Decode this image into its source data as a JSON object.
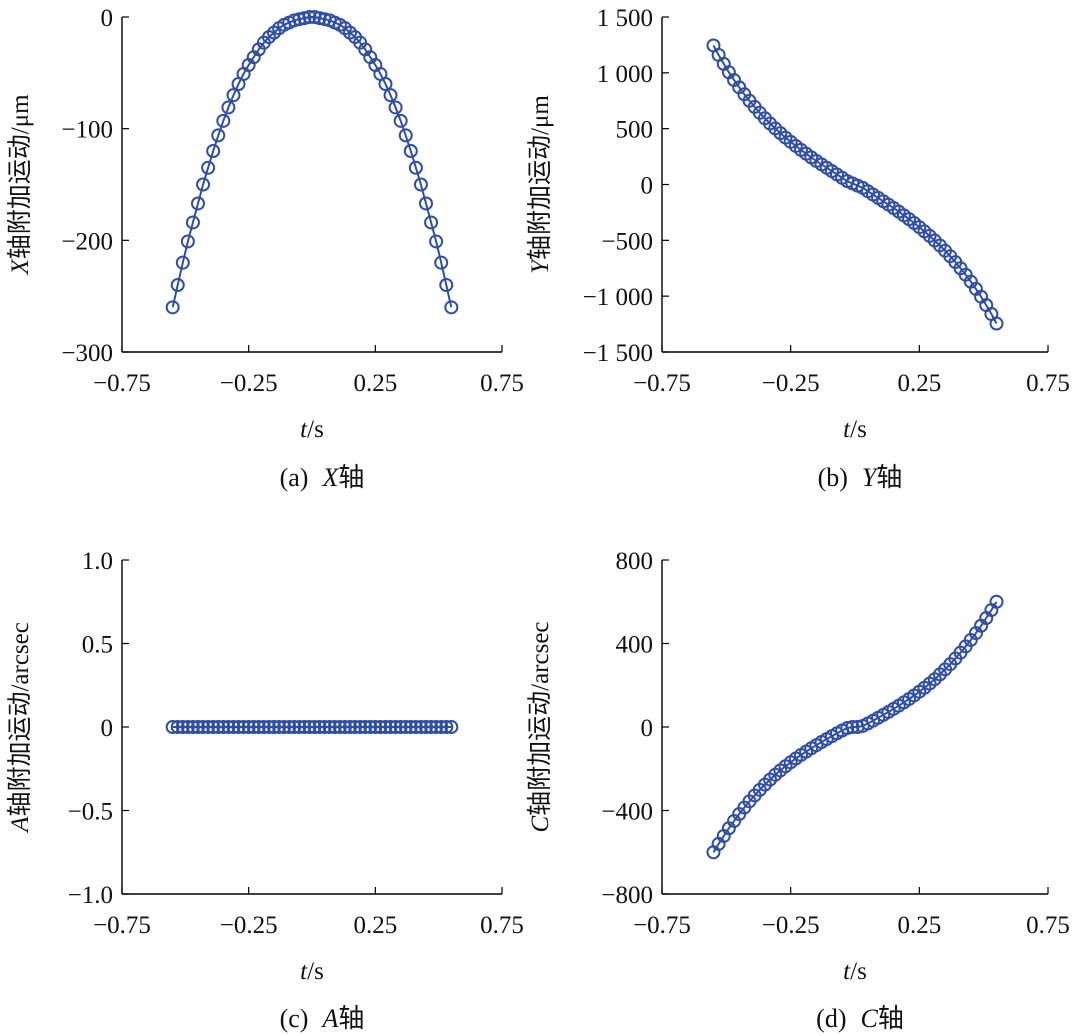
{
  "chart_data": [
    {
      "type": "line",
      "panel": "a",
      "caption": {
        "prefix": "(a)",
        "axis": "X",
        "suffix": "轴"
      },
      "title": "",
      "xlabel": {
        "var": "t",
        "unit": "/s"
      },
      "ylabel": {
        "axis": "X",
        "rest": "轴附加运动/μm"
      },
      "xlim": [
        -0.75,
        0.75
      ],
      "ylim": [
        -300,
        0
      ],
      "xticks": [
        "−0.75",
        "−0.25",
        "0.25",
        "0.75"
      ],
      "xtick_values": [
        -0.75,
        -0.25,
        0.25,
        0.75
      ],
      "yticks": [
        "0",
        "−100",
        "−200",
        "−300"
      ],
      "ytick_values": [
        0,
        -100,
        -200,
        -300
      ],
      "x": [
        -0.55,
        -0.53,
        -0.51,
        -0.49,
        -0.47,
        -0.45,
        -0.43,
        -0.41,
        -0.39,
        -0.37,
        -0.35,
        -0.33,
        -0.31,
        -0.29,
        -0.27,
        -0.25,
        -0.23,
        -0.21,
        -0.19,
        -0.17,
        -0.15,
        -0.13,
        -0.11,
        -0.09,
        -0.07,
        -0.05,
        -0.03,
        -0.01,
        0.01,
        0.03,
        0.05,
        0.07,
        0.09,
        0.11,
        0.13,
        0.15,
        0.17,
        0.19,
        0.21,
        0.23,
        0.25,
        0.27,
        0.29,
        0.31,
        0.33,
        0.35,
        0.37,
        0.39,
        0.41,
        0.43,
        0.45,
        0.47,
        0.49,
        0.51,
        0.53,
        0.55
      ],
      "y": [
        -260,
        -240,
        -220,
        -201,
        -184,
        -167,
        -150,
        -135,
        -120,
        -106,
        -93,
        -81,
        -70,
        -60,
        -51,
        -43,
        -36,
        -29,
        -23,
        -18,
        -14,
        -10,
        -7,
        -5,
        -3,
        -2,
        -1,
        0,
        0,
        -1,
        -2,
        -3,
        -5,
        -7,
        -10,
        -14,
        -18,
        -23,
        -29,
        -36,
        -43,
        -51,
        -60,
        -70,
        -81,
        -93,
        -106,
        -120,
        -135,
        -150,
        -167,
        -184,
        -201,
        -220,
        -240,
        -260
      ]
    },
    {
      "type": "line",
      "panel": "b",
      "caption": {
        "prefix": "(b)",
        "axis": "Y",
        "suffix": "轴"
      },
      "title": "",
      "xlabel": {
        "var": "t",
        "unit": "/s"
      },
      "ylabel": {
        "axis": "Y",
        "rest": "轴附加运动/μm"
      },
      "xlim": [
        -0.75,
        0.75
      ],
      "ylim": [
        -1500,
        1500
      ],
      "xticks": [
        "−0.75",
        "−0.25",
        "0.25",
        "0.75"
      ],
      "xtick_values": [
        -0.75,
        -0.25,
        0.25,
        0.75
      ],
      "yticks": [
        "1 500",
        "1 000",
        "500",
        "0",
        "−500",
        "−1 000",
        "−1 500"
      ],
      "ytick_values": [
        1500,
        1000,
        500,
        0,
        -500,
        -1000,
        -1500
      ],
      "x": [
        -0.55,
        -0.53,
        -0.51,
        -0.49,
        -0.47,
        -0.45,
        -0.43,
        -0.41,
        -0.39,
        -0.37,
        -0.35,
        -0.33,
        -0.31,
        -0.29,
        -0.27,
        -0.25,
        -0.23,
        -0.21,
        -0.19,
        -0.17,
        -0.15,
        -0.13,
        -0.11,
        -0.09,
        -0.07,
        -0.05,
        -0.03,
        -0.01,
        0.01,
        0.03,
        0.05,
        0.07,
        0.09,
        0.11,
        0.13,
        0.15,
        0.17,
        0.19,
        0.21,
        0.23,
        0.25,
        0.27,
        0.29,
        0.31,
        0.33,
        0.35,
        0.37,
        0.39,
        0.41,
        0.43,
        0.45,
        0.47,
        0.49,
        0.51,
        0.53,
        0.55
      ],
      "y": [
        1245,
        1160,
        1080,
        1005,
        935,
        870,
        808,
        750,
        695,
        642,
        593,
        546,
        502,
        460,
        420,
        382,
        345,
        310,
        276,
        243,
        211,
        180,
        150,
        120,
        90,
        60,
        30,
        10,
        -10,
        -30,
        -60,
        -90,
        -120,
        -150,
        -180,
        -211,
        -243,
        -276,
        -310,
        -345,
        -382,
        -420,
        -460,
        -502,
        -546,
        -593,
        -642,
        -695,
        -750,
        -808,
        -870,
        -935,
        -1005,
        -1080,
        -1160,
        -1245
      ]
    },
    {
      "type": "line",
      "panel": "c",
      "caption": {
        "prefix": "(c)",
        "axis": "A",
        "suffix": "轴"
      },
      "title": "",
      "xlabel": {
        "var": "t",
        "unit": "/s"
      },
      "ylabel": {
        "axis": "A",
        "rest": "轴附加运动/arcsec"
      },
      "xlim": [
        -0.75,
        0.75
      ],
      "ylim": [
        -1.0,
        1.0
      ],
      "xticks": [
        "−0.75",
        "−0.25",
        "0.25",
        "0.75"
      ],
      "xtick_values": [
        -0.75,
        -0.25,
        0.25,
        0.75
      ],
      "yticks": [
        "1.0",
        "0.5",
        "0",
        "−0.5",
        "−1.0"
      ],
      "ytick_values": [
        1.0,
        0.5,
        0,
        -0.5,
        -1.0
      ],
      "x": [
        -0.55,
        -0.53,
        -0.51,
        -0.49,
        -0.47,
        -0.45,
        -0.43,
        -0.41,
        -0.39,
        -0.37,
        -0.35,
        -0.33,
        -0.31,
        -0.29,
        -0.27,
        -0.25,
        -0.23,
        -0.21,
        -0.19,
        -0.17,
        -0.15,
        -0.13,
        -0.11,
        -0.09,
        -0.07,
        -0.05,
        -0.03,
        -0.01,
        0.01,
        0.03,
        0.05,
        0.07,
        0.09,
        0.11,
        0.13,
        0.15,
        0.17,
        0.19,
        0.21,
        0.23,
        0.25,
        0.27,
        0.29,
        0.31,
        0.33,
        0.35,
        0.37,
        0.39,
        0.41,
        0.43,
        0.45,
        0.47,
        0.49,
        0.51,
        0.53,
        0.55
      ],
      "y": [
        0,
        0,
        0,
        0,
        0,
        0,
        0,
        0,
        0,
        0,
        0,
        0,
        0,
        0,
        0,
        0,
        0,
        0,
        0,
        0,
        0,
        0,
        0,
        0,
        0,
        0,
        0,
        0,
        0,
        0,
        0,
        0,
        0,
        0,
        0,
        0,
        0,
        0,
        0,
        0,
        0,
        0,
        0,
        0,
        0,
        0,
        0,
        0,
        0,
        0,
        0,
        0,
        0,
        0,
        0,
        0
      ]
    },
    {
      "type": "line",
      "panel": "d",
      "caption": {
        "prefix": "(d)",
        "axis": "C",
        "suffix": "轴"
      },
      "title": "",
      "xlabel": {
        "var": "t",
        "unit": "/s"
      },
      "ylabel": {
        "axis": "C",
        "rest": "轴附加运动/arcsec"
      },
      "xlim": [
        -0.75,
        0.75
      ],
      "ylim": [
        -800,
        800
      ],
      "xticks": [
        "−0.75",
        "−0.25",
        "0.25",
        "0.75"
      ],
      "xtick_values": [
        -0.75,
        -0.25,
        0.25,
        0.75
      ],
      "yticks": [
        "800",
        "400",
        "0",
        "−400",
        "−800"
      ],
      "ytick_values": [
        800,
        400,
        0,
        -400,
        -800
      ],
      "x": [
        -0.55,
        -0.53,
        -0.51,
        -0.49,
        -0.47,
        -0.45,
        -0.43,
        -0.41,
        -0.39,
        -0.37,
        -0.35,
        -0.33,
        -0.31,
        -0.29,
        -0.27,
        -0.25,
        -0.23,
        -0.21,
        -0.19,
        -0.17,
        -0.15,
        -0.13,
        -0.11,
        -0.09,
        -0.07,
        -0.05,
        -0.03,
        -0.01,
        0.01,
        0.03,
        0.05,
        0.07,
        0.09,
        0.11,
        0.13,
        0.15,
        0.17,
        0.19,
        0.21,
        0.23,
        0.25,
        0.27,
        0.29,
        0.31,
        0.33,
        0.35,
        0.37,
        0.39,
        0.41,
        0.43,
        0.45,
        0.47,
        0.49,
        0.51,
        0.53,
        0.55
      ],
      "y": [
        -600,
        -560,
        -522,
        -485,
        -450,
        -417,
        -386,
        -356,
        -328,
        -301,
        -276,
        -252,
        -229,
        -208,
        -188,
        -169,
        -151,
        -134,
        -118,
        -102,
        -87,
        -72,
        -58,
        -44,
        -30,
        -17,
        -5,
        0,
        0,
        5,
        17,
        30,
        44,
        58,
        72,
        87,
        102,
        118,
        134,
        151,
        169,
        188,
        208,
        229,
        252,
        276,
        301,
        328,
        356,
        386,
        417,
        450,
        485,
        522,
        560,
        600
      ]
    }
  ],
  "colors": {
    "series": "#2f4ea5",
    "axis": "#000000"
  }
}
